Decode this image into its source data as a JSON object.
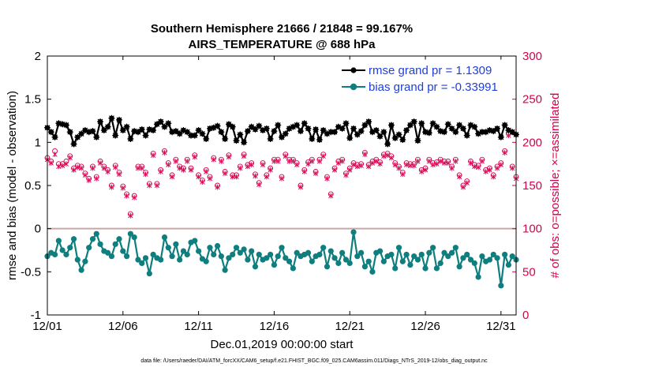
{
  "chart_data": {
    "type": "line",
    "title": "Southern Hemisphere 21666 / 21848 = 99.167%",
    "subtitle": "AIRS_TEMPERATURE @ 688 hPa",
    "xlabel": "Dec.01,2019 00:00:00 start",
    "ylabel_left": "rmse and bias (model - observation)",
    "ylabel_right": "# of obs: o=possible; ×=assimilated",
    "footnote": "data file: /Users/raeder/DAI/ATM_forcXX/CAM6_setup/f.e21.FHIST_BGC.f09_025.CAM6assim.011/Diags_NTrS_2019-12/obs_diag_output.nc",
    "xlim": [
      1,
      32
    ],
    "ylim_left": [
      -1,
      2
    ],
    "ylim_right": [
      0,
      300
    ],
    "x_ticks": [
      1,
      6,
      11,
      16,
      21,
      26,
      31
    ],
    "x_tick_labels": [
      "12/01",
      "12/06",
      "12/11",
      "12/16",
      "12/21",
      "12/26",
      "12/31"
    ],
    "y_left_ticks": [
      -1,
      -0.5,
      0,
      0.5,
      1,
      1.5,
      2
    ],
    "y_left_tick_labels": [
      "-1",
      "-0.5",
      "0",
      "0.5",
      "1",
      "1.5",
      "2"
    ],
    "y_right_ticks": [
      0,
      50,
      100,
      150,
      200,
      250,
      300
    ],
    "y_right_tick_labels": [
      "0",
      "50",
      "100",
      "150",
      "200",
      "250",
      "300"
    ],
    "legend_position": "top-right",
    "colors": {
      "rmse": "#000000",
      "bias": "#0e7e7e",
      "obs": "#d6004f",
      "zero_line": "#c9a6a6",
      "legend_text": "#1f3fd9"
    },
    "x_start": 1.0,
    "x_step": 0.25,
    "series": [
      {
        "name": "rmse grand pr = 1.1309",
        "axis": "left",
        "values": [
          1.17,
          1.12,
          1.06,
          1.22,
          1.21,
          1.2,
          1.12,
          0.98,
          1.06,
          1.1,
          1.14,
          1.12,
          1.13,
          1.06,
          1.24,
          1.14,
          1.18,
          1.28,
          1.08,
          1.26,
          1.14,
          1.18,
          1.04,
          1.13,
          1.12,
          1.15,
          1.08,
          1.15,
          1.14,
          1.21,
          1.24,
          1.18,
          1.22,
          1.12,
          1.13,
          1.1,
          1.14,
          1.12,
          1.08,
          1.08,
          1.14,
          1.1,
          1.04,
          1.16,
          1.17,
          1.19,
          1.12,
          1.04,
          1.21,
          1.18,
          1.02,
          1.09,
          1.0,
          1.13,
          1.18,
          1.15,
          1.19,
          1.14,
          1.16,
          1.04,
          1.13,
          1.2,
          1.06,
          1.1,
          1.16,
          1.18,
          1.2,
          1.13,
          1.22,
          1.16,
          1.04,
          1.15,
          1.03,
          1.14,
          1.1,
          1.12,
          1.12,
          1.18,
          1.16,
          1.22,
          1.05,
          1.16,
          1.09,
          1.13,
          1.2,
          1.24,
          1.12,
          1.14,
          1.07,
          1.12,
          0.98,
          1.2,
          1.05,
          1.09,
          1.03,
          1.14,
          1.2,
          1.24,
          1.02,
          1.22,
          1.12,
          1.11,
          1.22,
          1.18,
          1.13,
          1.12,
          1.21,
          1.16,
          1.12,
          1.2,
          1.16,
          1.08,
          1.2,
          1.18,
          1.1,
          1.12,
          1.12,
          1.14,
          1.13,
          1.16,
          1.06,
          1.2,
          1.14,
          1.12,
          1.09
        ]
      },
      {
        "name": "bias grand pr = -0.33991",
        "axis": "left",
        "values": [
          -0.32,
          -0.28,
          -0.3,
          -0.14,
          -0.25,
          -0.3,
          -0.22,
          -0.12,
          -0.36,
          -0.48,
          -0.38,
          -0.22,
          -0.12,
          -0.06,
          -0.18,
          -0.26,
          -0.28,
          -0.32,
          -0.18,
          -0.12,
          -0.26,
          -0.32,
          -0.06,
          -0.1,
          -0.36,
          -0.4,
          -0.34,
          -0.52,
          -0.3,
          -0.34,
          -0.36,
          -0.1,
          -0.22,
          -0.32,
          -0.18,
          -0.36,
          -0.26,
          -0.3,
          -0.16,
          -0.14,
          -0.26,
          -0.35,
          -0.38,
          -0.22,
          -0.3,
          -0.2,
          -0.32,
          -0.48,
          -0.34,
          -0.3,
          -0.22,
          -0.28,
          -0.24,
          -0.36,
          -0.26,
          -0.44,
          -0.3,
          -0.36,
          -0.34,
          -0.3,
          -0.42,
          -0.32,
          -0.22,
          -0.34,
          -0.38,
          -0.46,
          -0.28,
          -0.32,
          -0.3,
          -0.28,
          -0.38,
          -0.32,
          -0.3,
          -0.22,
          -0.44,
          -0.26,
          -0.34,
          -0.4,
          -0.28,
          -0.36,
          -0.4,
          -0.04,
          -0.32,
          -0.28,
          -0.44,
          -0.38,
          -0.5,
          -0.28,
          -0.26,
          -0.38,
          -0.32,
          -0.3,
          -0.46,
          -0.22,
          -0.38,
          -0.3,
          -0.42,
          -0.32,
          -0.36,
          -0.3,
          -0.46,
          -0.28,
          -0.22,
          -0.46,
          -0.4,
          -0.28,
          -0.32,
          -0.28,
          -0.22,
          -0.44,
          -0.34,
          -0.3,
          -0.36,
          -0.4,
          -0.56,
          -0.32,
          -0.38,
          -0.36,
          -0.3,
          -0.34,
          -0.66,
          -0.3,
          -0.42,
          -0.32,
          -0.36
        ]
      },
      {
        "name": "possible obs",
        "axis": "right",
        "values": [
          182,
          178,
          190,
          175,
          175,
          178,
          184,
          170,
          173,
          172,
          164,
          158,
          172,
          160,
          178,
          172,
          168,
          150,
          173,
          165,
          149,
          140,
          117,
          138,
          172,
          172,
          165,
          152,
          187,
          152,
          168,
          190,
          176,
          162,
          180,
          172,
          170,
          180,
          170,
          185,
          162,
          156,
          168,
          160,
          182,
          150,
          180,
          166,
          185,
          162,
          162,
          172,
          186,
          174,
          176,
          163,
          153,
          176,
          162,
          170,
          180,
          180,
          160,
          186,
          180,
          180,
          176,
          150,
          168,
          177,
          180,
          166,
          180,
          186,
          160,
          140,
          170,
          178,
          180,
          164,
          170,
          176,
          174,
          175,
          188,
          174,
          178,
          180,
          177,
          186,
          187,
          184,
          176,
          172,
          165,
          176,
          175,
          175,
          180,
          168,
          170,
          180,
          176,
          177,
          180,
          178,
          178,
          172,
          180,
          162,
          150,
          155,
          178,
          174,
          173,
          180,
          168,
          170,
          162,
          172,
          176,
          190,
          210,
          172,
          160
        ]
      },
      {
        "name": "assimilated obs",
        "axis": "right",
        "values": [
          180,
          176,
          186,
          172,
          173,
          175,
          182,
          168,
          171,
          170,
          162,
          156,
          170,
          158,
          176,
          170,
          166,
          148,
          171,
          163,
          147,
          138,
          115,
          136,
          170,
          170,
          163,
          150,
          185,
          150,
          166,
          188,
          174,
          160,
          178,
          170,
          168,
          178,
          168,
          183,
          160,
          154,
          166,
          158,
          180,
          148,
          178,
          164,
          183,
          160,
          160,
          170,
          184,
          172,
          174,
          161,
          151,
          174,
          160,
          168,
          178,
          178,
          158,
          184,
          178,
          178,
          174,
          148,
          166,
          175,
          178,
          164,
          178,
          184,
          158,
          138,
          168,
          176,
          178,
          162,
          168,
          174,
          172,
          173,
          186,
          172,
          176,
          178,
          175,
          184,
          185,
          182,
          174,
          170,
          163,
          174,
          173,
          173,
          178,
          166,
          168,
          178,
          174,
          175,
          178,
          176,
          176,
          170,
          178,
          160,
          148,
          153,
          176,
          172,
          171,
          178,
          166,
          168,
          160,
          170,
          174,
          188,
          208,
          170,
          158
        ]
      }
    ]
  }
}
